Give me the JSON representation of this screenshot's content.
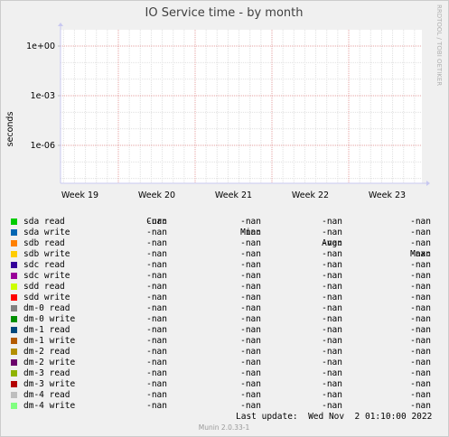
{
  "chart_data": {
    "type": "line",
    "title": "IO Service time - by month",
    "ylabel": "seconds",
    "ytick_labels": [
      "1e+00",
      "1e-03",
      "1e-06"
    ],
    "xtick_labels": [
      "Week 19",
      "Week 20",
      "Week 21",
      "Week 22",
      "Week 23"
    ],
    "yscale": "log",
    "grid": true,
    "side_label": "RRDTOOL / TOBI OETIKER",
    "columns": [
      "Cur:",
      "Min:",
      "Avg:",
      "Max:"
    ],
    "series": [
      {
        "name": "sda read",
        "color": "#00cc00",
        "cur": "-nan",
        "min": "-nan",
        "avg": "-nan",
        "max": "-nan"
      },
      {
        "name": "sda write",
        "color": "#0066b3",
        "cur": "-nan",
        "min": "-nan",
        "avg": "-nan",
        "max": "-nan"
      },
      {
        "name": "sdb read",
        "color": "#ff8000",
        "cur": "-nan",
        "min": "-nan",
        "avg": "-nan",
        "max": "-nan"
      },
      {
        "name": "sdb write",
        "color": "#ffcc00",
        "cur": "-nan",
        "min": "-nan",
        "avg": "-nan",
        "max": "-nan"
      },
      {
        "name": "sdc read",
        "color": "#330099",
        "cur": "-nan",
        "min": "-nan",
        "avg": "-nan",
        "max": "-nan"
      },
      {
        "name": "sdc write",
        "color": "#990099",
        "cur": "-nan",
        "min": "-nan",
        "avg": "-nan",
        "max": "-nan"
      },
      {
        "name": "sdd read",
        "color": "#ccff00",
        "cur": "-nan",
        "min": "-nan",
        "avg": "-nan",
        "max": "-nan"
      },
      {
        "name": "sdd write",
        "color": "#ff0000",
        "cur": "-nan",
        "min": "-nan",
        "avg": "-nan",
        "max": "-nan"
      },
      {
        "name": "dm-0 read",
        "color": "#808080",
        "cur": "-nan",
        "min": "-nan",
        "avg": "-nan",
        "max": "-nan"
      },
      {
        "name": "dm-0 write",
        "color": "#008f00",
        "cur": "-nan",
        "min": "-nan",
        "avg": "-nan",
        "max": "-nan"
      },
      {
        "name": "dm-1 read",
        "color": "#00487d",
        "cur": "-nan",
        "min": "-nan",
        "avg": "-nan",
        "max": "-nan"
      },
      {
        "name": "dm-1 write",
        "color": "#b35a00",
        "cur": "-nan",
        "min": "-nan",
        "avg": "-nan",
        "max": "-nan"
      },
      {
        "name": "dm-2 read",
        "color": "#b38f00",
        "cur": "-nan",
        "min": "-nan",
        "avg": "-nan",
        "max": "-nan"
      },
      {
        "name": "dm-2 write",
        "color": "#6b006b",
        "cur": "-nan",
        "min": "-nan",
        "avg": "-nan",
        "max": "-nan"
      },
      {
        "name": "dm-3 read",
        "color": "#8fb300",
        "cur": "-nan",
        "min": "-nan",
        "avg": "-nan",
        "max": "-nan"
      },
      {
        "name": "dm-3 write",
        "color": "#b30000",
        "cur": "-nan",
        "min": "-nan",
        "avg": "-nan",
        "max": "-nan"
      },
      {
        "name": "dm-4 read",
        "color": "#bebebe",
        "cur": "-nan",
        "min": "-nan",
        "avg": "-nan",
        "max": "-nan"
      },
      {
        "name": "dm-4 write",
        "color": "#80ff80",
        "cur": "-nan",
        "min": "-nan",
        "avg": "-nan",
        "max": "-nan"
      }
    ],
    "last_update": "Last update:  Wed Nov  2 01:10:00 2022",
    "footer": "Munin 2.0.33-1"
  }
}
